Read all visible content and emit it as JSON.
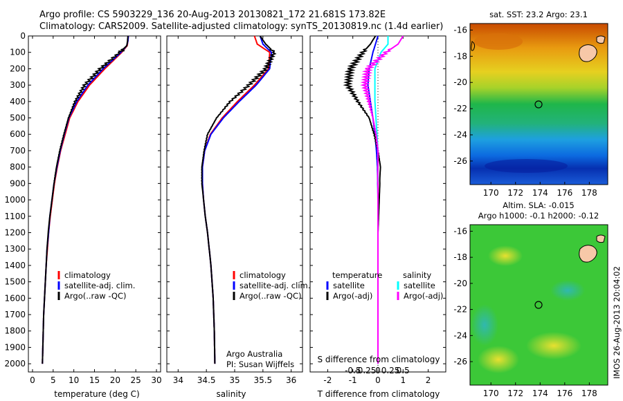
{
  "header": {
    "line1": "Argo profile: CS 5903229_136 20-Aug-2013 20130821_172 21.681S 173.82E",
    "line2": "Climatology: CARS2009. Satellite-adjusted climatology: synTS_20130819.nc (1.4d earlier)"
  },
  "depth_ticks": [
    "0",
    "100",
    "200",
    "300",
    "400",
    "500",
    "600",
    "700",
    "800",
    "900",
    "1000",
    "1100",
    "1200",
    "1300",
    "1400",
    "1500",
    "1600",
    "1700",
    "1800",
    "1900",
    "2000"
  ],
  "panel_temperature": {
    "xlabel": "temperature (deg C)",
    "xticks": [
      "0",
      "5",
      "10",
      "15",
      "20",
      "25",
      "30"
    ],
    "legend": [
      "climatology",
      "satellite-adj. clim.",
      "Argo(..raw -QC)"
    ]
  },
  "panel_salinity": {
    "xlabel": "salinity",
    "xticks": [
      "34",
      "34.5",
      "35",
      "35.5",
      "36"
    ],
    "legend": [
      "climatology",
      "satellite-adj. clim.",
      "Argo(..raw -QC)"
    ],
    "credit1": "Argo Australia",
    "credit2": "PI: Susan Wijffels"
  },
  "panel_difference": {
    "xlabel": "T difference from climatology",
    "top_label": "S difference from climatology",
    "t_ticks": [
      "-2",
      "-1",
      "0",
      "1",
      "2"
    ],
    "s_ticks": [
      "-0.5",
      "-0.25",
      "0",
      "0.25",
      "0.5"
    ],
    "legend_t_title": "temperature",
    "legend_s_title": "salinity",
    "legend_t": [
      "satellite",
      "Argo(-adj)"
    ],
    "legend_s": [
      "satellite",
      "Argo(-adj)"
    ]
  },
  "map_sst": {
    "title": "sat. SST: 23.2  Argo: 23.1",
    "yticks": [
      "-16",
      "-18",
      "-20",
      "-22",
      "-24",
      "-26"
    ],
    "xticks": [
      "170",
      "172",
      "174",
      "176",
      "178"
    ]
  },
  "map_sla": {
    "title1": "Altim. SLA: -0.015",
    "title2": "Argo h1000: -0.1 h2000: -0.12",
    "yticks": [
      "-16",
      "-18",
      "-20",
      "-22",
      "-24",
      "-26"
    ],
    "xticks": [
      "170",
      "172",
      "174",
      "176",
      "178"
    ]
  },
  "stamp": "IMOS 26-Aug-2013 20:04:02",
  "colors": {
    "climatology": "#ff0000",
    "satellite": "#0000ff",
    "argo": "#000000",
    "sal_satellite": "#00ffff",
    "sal_argo": "#ff00ff"
  },
  "chart_data": [
    {
      "type": "line",
      "title": "",
      "xlabel": "temperature (deg C)",
      "ylabel": "",
      "xlim": [
        -1,
        31
      ],
      "ylim": [
        2050,
        0
      ],
      "series": [
        {
          "name": "climatology",
          "x": [
            23.2,
            23.1,
            22.9,
            21.6,
            17.5,
            13.8,
            11.0,
            9.0,
            7.9,
            6.8,
            6.0,
            5.3,
            4.8,
            4.3,
            3.9,
            3.6,
            3.3,
            3.1,
            2.9,
            2.7,
            2.6,
            2.5,
            2.4
          ],
          "depth": [
            0,
            30,
            60,
            100,
            200,
            300,
            400,
            500,
            600,
            700,
            800,
            900,
            1000,
            1100,
            1200,
            1300,
            1400,
            1500,
            1600,
            1700,
            1800,
            1900,
            2000
          ]
        },
        {
          "name": "satellite-adj. clim.",
          "x": [
            23.2,
            23.1,
            22.8,
            21.4,
            17.1,
            13.4,
            10.7,
            8.8,
            7.7,
            6.7,
            5.9,
            5.2,
            4.7,
            4.2,
            3.9,
            3.5,
            3.3,
            3.1,
            2.9,
            2.7,
            2.6,
            2.5,
            2.4
          ],
          "depth": [
            0,
            30,
            60,
            100,
            200,
            300,
            400,
            500,
            600,
            700,
            800,
            900,
            1000,
            1100,
            1200,
            1300,
            1400,
            1500,
            1600,
            1700,
            1800,
            1900,
            2000
          ]
        },
        {
          "name": "Argo(..raw -QC)",
          "x": [
            23.1,
            23.0,
            22.8,
            21.1,
            16.4,
            12.6,
            10.3,
            8.7,
            7.6,
            6.6,
            5.8,
            5.2,
            4.7,
            4.2,
            3.8,
            3.5,
            3.3,
            3.1,
            2.9,
            2.7,
            2.6,
            2.5,
            2.4
          ],
          "depth": [
            0,
            30,
            60,
            100,
            200,
            300,
            400,
            500,
            600,
            700,
            800,
            900,
            1000,
            1100,
            1200,
            1300,
            1400,
            1500,
            1600,
            1700,
            1800,
            1900,
            2000
          ]
        }
      ]
    },
    {
      "type": "line",
      "title": "",
      "xlabel": "salinity",
      "ylabel": "",
      "xlim": [
        33.8,
        36.2
      ],
      "ylim": [
        2050,
        0
      ],
      "series": [
        {
          "name": "climatology",
          "x": [
            35.35,
            35.4,
            35.62,
            35.6,
            35.35,
            35.05,
            34.78,
            34.57,
            34.47,
            34.43,
            34.43,
            34.45,
            34.48,
            34.52,
            34.55,
            34.58,
            34.6,
            34.62,
            34.63,
            34.64,
            34.65
          ],
          "depth": [
            0,
            50,
            100,
            200,
            300,
            400,
            500,
            600,
            700,
            800,
            900,
            1000,
            1100,
            1200,
            1300,
            1400,
            1500,
            1600,
            1700,
            1800,
            2000
          ]
        },
        {
          "name": "satellite-adj. clim.",
          "x": [
            35.45,
            35.5,
            35.65,
            35.62,
            35.38,
            35.08,
            34.8,
            34.58,
            34.47,
            34.43,
            34.43,
            34.45,
            34.48,
            34.52,
            34.55,
            34.58,
            34.6,
            34.62,
            34.63,
            34.64,
            34.65
          ],
          "depth": [
            0,
            50,
            100,
            200,
            300,
            400,
            500,
            600,
            700,
            800,
            900,
            1000,
            1100,
            1200,
            1300,
            1400,
            1500,
            1600,
            1700,
            1800,
            2000
          ]
        },
        {
          "name": "Argo(..raw -QC)",
          "x": [
            35.45,
            35.55,
            35.7,
            35.55,
            35.25,
            34.92,
            34.68,
            34.52,
            34.46,
            34.42,
            34.42,
            34.45,
            34.48,
            34.52,
            34.55,
            34.58,
            34.6,
            34.62,
            34.63,
            34.64,
            34.65
          ],
          "depth": [
            0,
            50,
            100,
            200,
            300,
            400,
            500,
            600,
            700,
            800,
            900,
            1000,
            1100,
            1200,
            1300,
            1400,
            1500,
            1600,
            1700,
            1800,
            2000
          ]
        }
      ]
    },
    {
      "type": "line",
      "title": "",
      "xlabel": "T difference from climatology",
      "ylabel": "",
      "xlim": [
        -2.7,
        2.7
      ],
      "ylim": [
        2050,
        0
      ],
      "series": [
        {
          "name": "temperature satellite",
          "axis": "T",
          "x": [
            0.0,
            -0.1,
            -0.2,
            -0.35,
            -0.4,
            -0.3,
            -0.2,
            -0.12,
            -0.06,
            -0.02,
            0.0,
            0.0,
            0.0,
            0.0,
            0.0,
            0.0
          ],
          "depth": [
            0,
            50,
            100,
            200,
            300,
            400,
            500,
            600,
            700,
            800,
            1000,
            1200,
            1400,
            1600,
            1800,
            2000
          ]
        },
        {
          "name": "temperature Argo(-adj)",
          "axis": "T",
          "x": [
            -0.1,
            -0.3,
            -0.6,
            -1.1,
            -1.2,
            -0.8,
            -0.35,
            -0.15,
            0.0,
            0.1,
            0.05,
            0.0,
            0.0,
            0.0,
            0.0,
            0.0
          ],
          "depth": [
            0,
            50,
            100,
            200,
            300,
            400,
            500,
            600,
            700,
            800,
            1000,
            1200,
            1400,
            1600,
            1800,
            2000
          ]
        },
        {
          "name": "salinity satellite",
          "axis": "S",
          "x": [
            0.1,
            0.1,
            0.03,
            -0.03,
            -0.03,
            -0.03,
            -0.02,
            -0.01,
            0.0,
            0.0,
            0.0,
            0.0,
            0.0,
            0.0,
            0.0
          ],
          "depth": [
            0,
            50,
            100,
            200,
            300,
            400,
            500,
            600,
            700,
            800,
            1000,
            1200,
            1400,
            1600,
            2000
          ]
        },
        {
          "name": "salinity Argo(-adj)",
          "axis": "S",
          "x": [
            0.25,
            0.2,
            0.08,
            -0.1,
            -0.13,
            -0.09,
            -0.05,
            -0.02,
            0.0,
            0.0,
            0.0,
            0.0,
            0.0,
            0.0,
            0.0
          ],
          "depth": [
            0,
            50,
            100,
            200,
            300,
            400,
            500,
            600,
            700,
            800,
            1000,
            1200,
            1400,
            1600,
            2000
          ]
        }
      ]
    }
  ]
}
